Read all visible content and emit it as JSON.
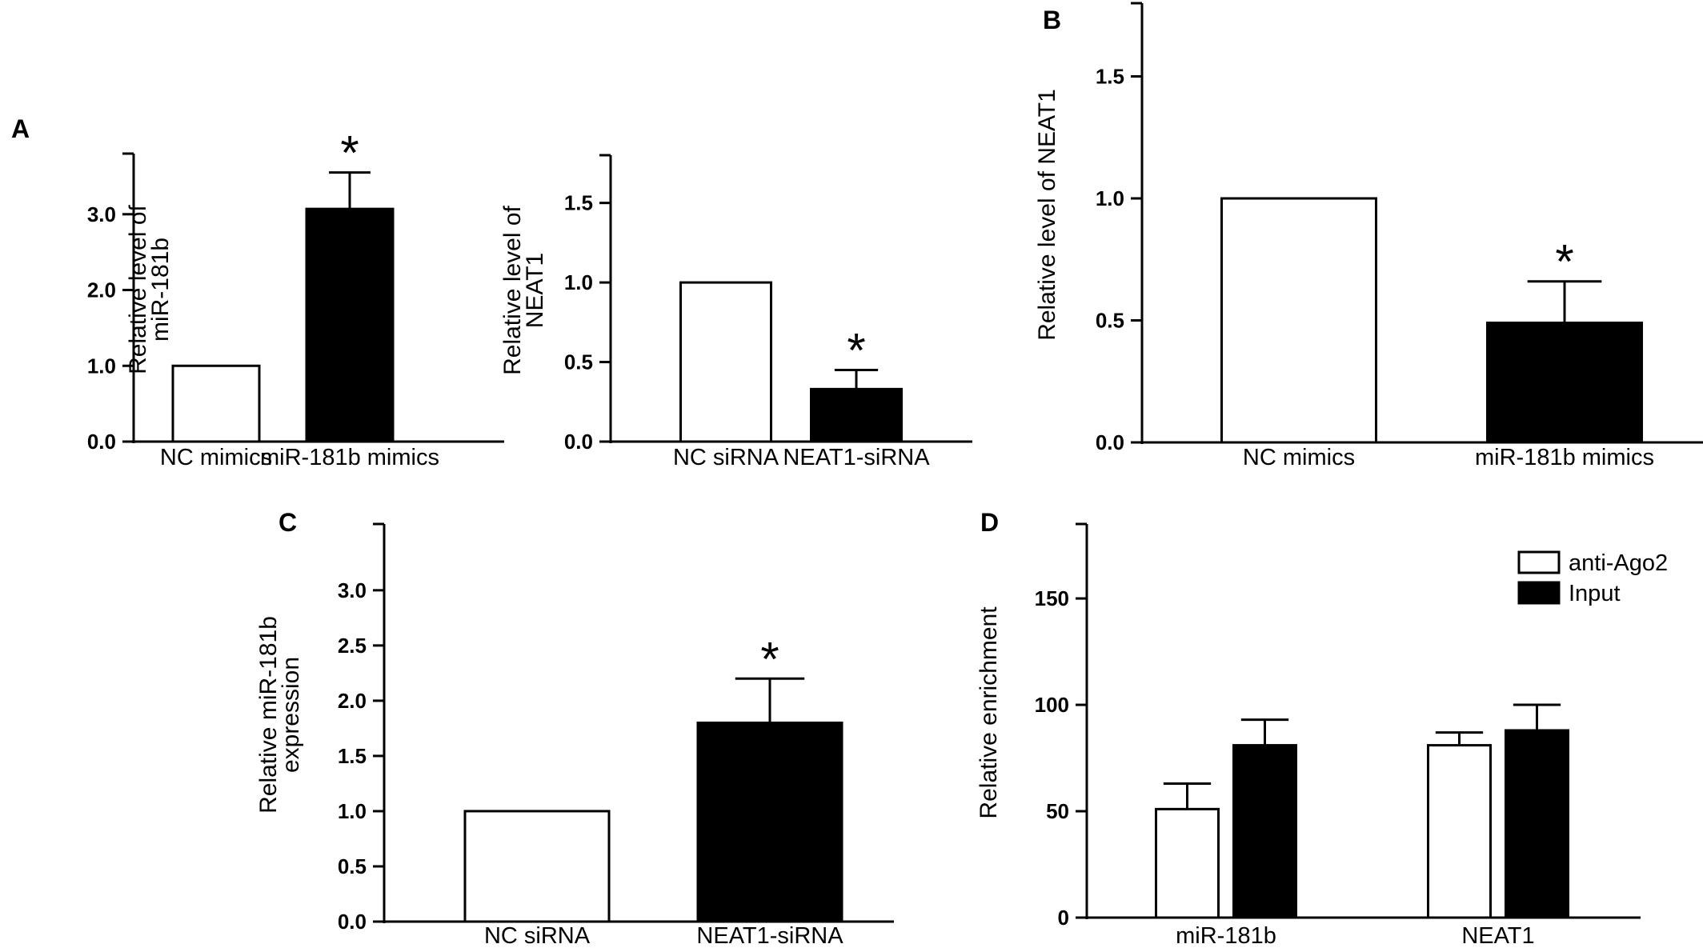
{
  "panel_letters": {
    "A": "A",
    "B": "B",
    "C": "C",
    "D": "D"
  },
  "bar_colors": {
    "open": "#ffffff",
    "filled": "#000000",
    "stroke": "#000000"
  },
  "chart_data": [
    {
      "id": "A1",
      "panel": "A",
      "type": "bar",
      "title": "",
      "ylabel": "Relative level of miR-181b",
      "ylabel_lines": [
        "Relative level of",
        "miR-181b"
      ],
      "ylim": [
        0,
        3.8
      ],
      "yticks": [
        0,
        1,
        2,
        3
      ],
      "ytick_labels": [
        "0.0",
        "1.0",
        "2.0",
        "3.0"
      ],
      "categories": [
        "NC mimics",
        "miR-181b mimics"
      ],
      "values": [
        1.0,
        3.07
      ],
      "errors": [
        0,
        0.48
      ],
      "fills": [
        "open",
        "filled"
      ],
      "significance": [
        "",
        "*"
      ],
      "grid": false
    },
    {
      "id": "A2",
      "panel": "A",
      "type": "bar",
      "title": "",
      "ylabel": "Relative level of NEAT1",
      "ylabel_lines": [
        "Relative level of",
        "NEAT1"
      ],
      "ylim": [
        0,
        1.8
      ],
      "yticks": [
        0,
        0.5,
        1.0,
        1.5
      ],
      "ytick_labels": [
        "0.0",
        "0.5",
        "1.0",
        "1.5"
      ],
      "categories": [
        "NC siRNA",
        "NEAT1-siRNA"
      ],
      "values": [
        1.0,
        0.33
      ],
      "errors": [
        0,
        0.12
      ],
      "fills": [
        "open",
        "filled"
      ],
      "significance": [
        "",
        "*"
      ],
      "grid": false
    },
    {
      "id": "B",
      "panel": "B",
      "type": "bar",
      "title": "",
      "ylabel": "Relative level of NEAT1",
      "ylabel_lines": [
        "Relative level of NEAT1"
      ],
      "ylim": [
        0,
        1.8
      ],
      "yticks": [
        0,
        0.5,
        1.0,
        1.5
      ],
      "ytick_labels": [
        "0.0",
        "0.5",
        "1.0",
        "1.5"
      ],
      "categories": [
        "NC mimics",
        "miR-181b mimics"
      ],
      "values": [
        1.0,
        0.49
      ],
      "errors": [
        0,
        0.17
      ],
      "fills": [
        "open",
        "filled"
      ],
      "significance": [
        "",
        "*"
      ],
      "grid": false
    },
    {
      "id": "C",
      "panel": "C",
      "type": "bar",
      "title": "",
      "ylabel": "Relative miR-181b expression",
      "ylabel_lines": [
        "Relative miR-181b",
        "expression"
      ],
      "ylim": [
        0,
        3.6
      ],
      "yticks": [
        0,
        0.5,
        1.0,
        1.5,
        2.0,
        2.5,
        3.0
      ],
      "ytick_labels": [
        "0.0",
        "0.5",
        "1.0",
        "1.5",
        "2.0",
        "2.5",
        "3.0"
      ],
      "categories": [
        "NC siRNA",
        "NEAT1-siRNA"
      ],
      "values": [
        1.0,
        1.8
      ],
      "errors": [
        0,
        0.4
      ],
      "fills": [
        "open",
        "filled"
      ],
      "significance": [
        "",
        "*"
      ],
      "grid": false
    },
    {
      "id": "D",
      "panel": "D",
      "type": "bar",
      "title": "",
      "ylabel": "Relative enrichment",
      "ylabel_lines": [
        "Relative enrichment"
      ],
      "ylim": [
        0,
        185
      ],
      "yticks": [
        0,
        50,
        100,
        150
      ],
      "ytick_labels": [
        "0",
        "50",
        "100",
        "150"
      ],
      "categories": [
        "miR-181b",
        "NEAT1"
      ],
      "series": [
        {
          "name": "anti-Ago2",
          "fill": "open",
          "values": [
            51,
            81
          ],
          "errors": [
            12,
            6
          ]
        },
        {
          "name": "Input",
          "fill": "filled",
          "values": [
            81,
            88
          ],
          "errors": [
            12,
            12
          ]
        }
      ],
      "legend": "top-right",
      "grid": false
    }
  ]
}
